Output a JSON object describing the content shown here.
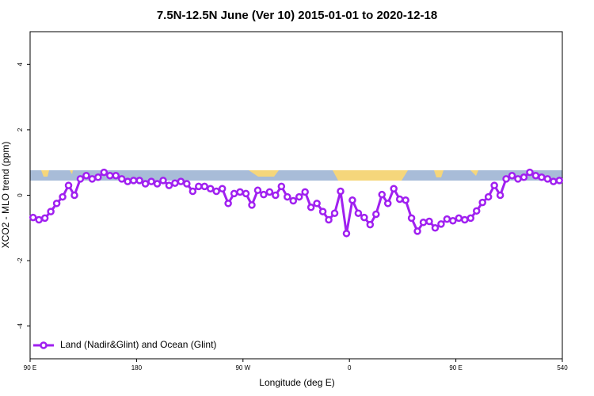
{
  "chart_data": {
    "type": "line",
    "title": "7.5N-12.5N June (Ver 10)   2015-01-01 to 2020-12-18",
    "xlabel": "Longitude (deg E)",
    "ylabel": "XCO2 - MLO trend (ppm)",
    "xlim": [
      90,
      540
    ],
    "ylim": [
      -5,
      5
    ],
    "xticks": [
      {
        "value": 90,
        "label": "90 E"
      },
      180,
      {
        "value": 270,
        "label": "90 W"
      },
      {
        "value": 360,
        "label": "0"
      },
      {
        "value": 450,
        "label": "90 E"
      },
      540
    ],
    "yticks": [
      -4,
      -2,
      0,
      2,
      4
    ],
    "legend": "bottom-left",
    "x": [
      92.5,
      97.5,
      102.5,
      107.5,
      112.5,
      117.5,
      122.5,
      127.5,
      132.5,
      137.5,
      142.5,
      147.5,
      152.5,
      157.5,
      162.5,
      167.5,
      172.5,
      177.5,
      182.5,
      187.5,
      192.5,
      197.5,
      202.5,
      207.5,
      212.5,
      217.5,
      222.5,
      227.5,
      232.5,
      237.5,
      242.5,
      247.5,
      252.5,
      257.5,
      262.5,
      267.5,
      272.5,
      277.5,
      282.5,
      287.5,
      292.5,
      297.5,
      302.5,
      307.5,
      312.5,
      317.5,
      322.5,
      327.5,
      332.5,
      337.5,
      342.5,
      347.5,
      352.5,
      357.5,
      362.5,
      367.5,
      372.5,
      377.5,
      382.5,
      387.5,
      392.5,
      397.5,
      402.5,
      407.5,
      412.5,
      417.5,
      422.5,
      427.5,
      432.5,
      437.5,
      442.5,
      447.5,
      452.5,
      457.5,
      462.5,
      467.5,
      472.5,
      477.5,
      482.5,
      487.5,
      492.5,
      497.5,
      502.5,
      507.5,
      512.5,
      517.5,
      522.5,
      527.5,
      532.5,
      537.5
    ],
    "series": [
      {
        "name": "Land (Nadir&Glint) and Ocean (Glint)",
        "color": "#a020f0",
        "values": [
          -0.68,
          -0.75,
          -0.7,
          -0.5,
          -0.25,
          -0.05,
          0.3,
          0.0,
          0.5,
          0.6,
          0.5,
          0.55,
          0.7,
          0.6,
          0.6,
          0.5,
          0.42,
          0.45,
          0.45,
          0.35,
          0.42,
          0.35,
          0.45,
          0.3,
          0.37,
          0.42,
          0.35,
          0.12,
          0.27,
          0.27,
          0.2,
          0.12,
          0.2,
          -0.25,
          0.05,
          0.1,
          0.05,
          -0.3,
          0.15,
          0.02,
          0.1,
          0.0,
          0.27,
          -0.05,
          -0.17,
          -0.05,
          0.1,
          -0.37,
          -0.25,
          -0.5,
          -0.75,
          -0.55,
          0.12,
          -1.17,
          -0.15,
          -0.55,
          -0.68,
          -0.9,
          -0.58,
          0.02,
          -0.25,
          0.2,
          -0.12,
          -0.15,
          -0.7,
          -1.1,
          -0.83,
          -0.8,
          -1.0,
          -0.88,
          -0.73,
          -0.78,
          -0.7,
          -0.75,
          -0.7,
          -0.48,
          -0.22,
          -0.05,
          0.3,
          0.0,
          0.5,
          0.6,
          0.5,
          0.55,
          0.7,
          0.6,
          0.55,
          0.5,
          0.42,
          0.45
        ]
      }
    ]
  }
}
